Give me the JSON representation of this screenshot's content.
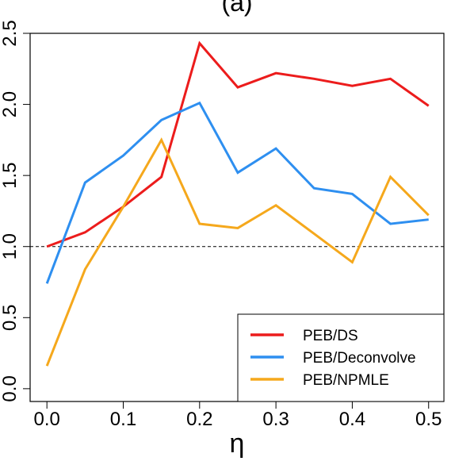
{
  "chart_data": {
    "type": "line",
    "title": "(a)",
    "x_label": "η",
    "x": [
      0,
      0.05,
      0.1,
      0.15,
      0.2,
      0.25,
      0.3,
      0.35,
      0.4,
      0.45,
      0.5
    ],
    "series": [
      {
        "name": "PEB/DS",
        "color": "#ec1c1c",
        "values": [
          1.0,
          1.1,
          1.28,
          1.49,
          2.43,
          2.12,
          2.22,
          2.18,
          2.13,
          2.18,
          1.99
        ]
      },
      {
        "name": "PEB/Deconvolve",
        "color": "#2e8ff0",
        "values": [
          0.74,
          1.45,
          1.64,
          1.89,
          2.01,
          1.52,
          1.69,
          1.41,
          1.37,
          1.16,
          1.19
        ]
      },
      {
        "name": "PEB/NPMLE",
        "color": "#f5a81c",
        "values": [
          0.16,
          0.84,
          1.28,
          1.75,
          1.16,
          1.13,
          1.29,
          1.09,
          0.89,
          1.49,
          1.22
        ]
      }
    ],
    "xlim": [
      -0.022,
      0.52
    ],
    "ylim": [
      -0.09,
      2.5
    ],
    "xticks": [
      {
        "value": 0,
        "label": "0.0"
      },
      0.1,
      0.2,
      0.3,
      0.4,
      0.5
    ],
    "yticks": [
      {
        "value": 0,
        "label": "0.0"
      },
      0.5,
      {
        "value": 1,
        "label": "1.0"
      },
      1.5,
      {
        "value": 2,
        "label": "2.0"
      },
      2.5
    ],
    "hline": 1,
    "legend": "bottom-right"
  }
}
